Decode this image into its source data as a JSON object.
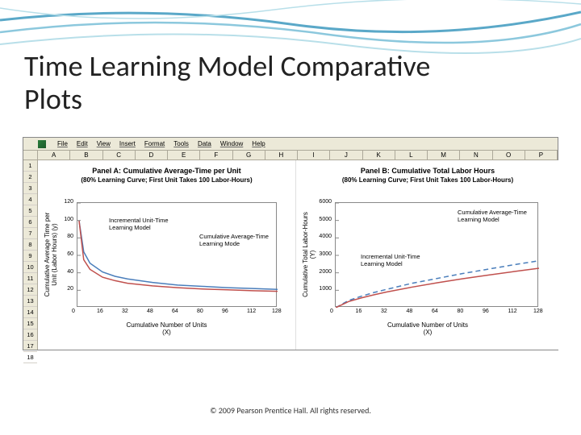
{
  "slide": {
    "title_line1": "Time Learning Model Comparative",
    "title_line2": "Plots",
    "copyright": "© 2009 Pearson Prentice Hall. All rights reserved."
  },
  "wave": {
    "stroke1": "#5aa8c8",
    "stroke2": "#8cc8dd",
    "stroke3": "#b8dfe9"
  },
  "excel": {
    "menubar_bg": "#ece9d8",
    "menu_items": [
      "File",
      "Edit",
      "View",
      "Insert",
      "Format",
      "Tools",
      "Data",
      "Window",
      "Help"
    ],
    "columns": [
      "A",
      "B",
      "C",
      "D",
      "E",
      "F",
      "G",
      "H",
      "I",
      "J",
      "K",
      "L",
      "M",
      "N",
      "O",
      "P"
    ],
    "rows": [
      "1",
      "2",
      "3",
      "4",
      "5",
      "6",
      "7",
      "8",
      "9",
      "10",
      "11",
      "12",
      "13",
      "14",
      "15",
      "16",
      "17",
      "18"
    ]
  },
  "panelA": {
    "title": "Panel A: Cumulative Average-Time per Unit",
    "subtitle": "(80% Learning Curve; First Unit Takes 100 Labor-Hours)",
    "ylabel1": "Cumulative Average Time per",
    "ylabel2": "Unit (Labor Hours) (y)",
    "xlabel1": "Cumulative Number of Units",
    "xlabel2": "(X)",
    "xlim": [
      0,
      128
    ],
    "ylim": [
      0,
      120
    ],
    "xticks": [
      0,
      16,
      32,
      48,
      64,
      80,
      96,
      112,
      128
    ],
    "yticks": [
      20,
      40,
      60,
      80,
      100,
      120
    ],
    "legend_inc": "Incremental Unit-Time\nLearning Model",
    "legend_cum": "Cumulative Average-Time\nLearning Mode",
    "series_inc": {
      "color": "#c0504d",
      "points": [
        [
          1,
          100
        ],
        [
          4,
          55
        ],
        [
          8,
          44
        ],
        [
          16,
          35
        ],
        [
          24,
          31
        ],
        [
          32,
          28
        ],
        [
          48,
          25
        ],
        [
          64,
          23
        ],
        [
          80,
          21.5
        ],
        [
          96,
          20.5
        ],
        [
          112,
          19.5
        ],
        [
          128,
          18.8
        ]
      ]
    },
    "series_cum": {
      "color": "#4a7ebb",
      "points": [
        [
          1,
          100
        ],
        [
          4,
          64
        ],
        [
          8,
          51
        ],
        [
          16,
          41
        ],
        [
          24,
          36
        ],
        [
          32,
          33
        ],
        [
          48,
          29
        ],
        [
          64,
          26
        ],
        [
          80,
          24.5
        ],
        [
          96,
          23
        ],
        [
          112,
          22
        ],
        [
          128,
          21
        ]
      ]
    }
  },
  "panelB": {
    "title": "Panel B: Cumulative Total Labor Hours",
    "subtitle": "(80% Learning Curve; First Unit Takes 100 Labor-Hours)",
    "ylabel1": "Cumulative Total Labor-Hours",
    "ylabel2": "(Y)",
    "xlabel1": "Cumulative Number of Units",
    "xlabel2": "(X)",
    "xlim": [
      0,
      128
    ],
    "ylim": [
      0,
      6000
    ],
    "xticks": [
      0,
      16,
      32,
      48,
      64,
      80,
      96,
      112,
      128
    ],
    "yticks": [
      1000,
      2000,
      3000,
      4000,
      5000,
      6000
    ],
    "legend_inc": "Incremental Unit-Time\nLearning Model",
    "legend_cum": "Cumulative Average-Time\nLearning Model",
    "series_inc": {
      "color": "#c0504d",
      "points": [
        [
          0,
          0
        ],
        [
          8,
          350
        ],
        [
          16,
          560
        ],
        [
          24,
          740
        ],
        [
          32,
          900
        ],
        [
          48,
          1180
        ],
        [
          64,
          1430
        ],
        [
          80,
          1660
        ],
        [
          96,
          1870
        ],
        [
          112,
          2070
        ],
        [
          128,
          2260
        ]
      ]
    },
    "series_cum": {
      "color": "#4a7ebb",
      "dash": "6,4",
      "points": [
        [
          0,
          0
        ],
        [
          8,
          410
        ],
        [
          16,
          655
        ],
        [
          24,
          870
        ],
        [
          32,
          1050
        ],
        [
          48,
          1400
        ],
        [
          64,
          1680
        ],
        [
          80,
          1960
        ],
        [
          96,
          2210
        ],
        [
          112,
          2460
        ],
        [
          128,
          2690
        ]
      ]
    }
  }
}
